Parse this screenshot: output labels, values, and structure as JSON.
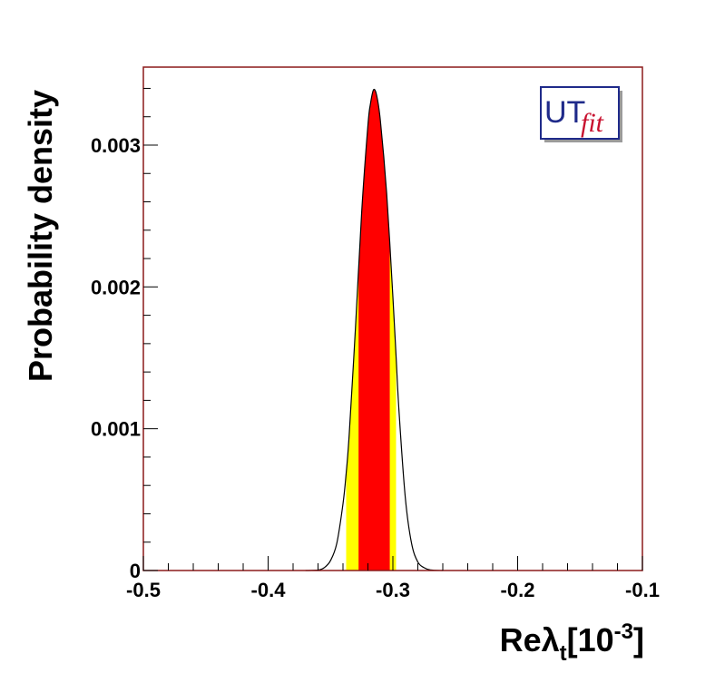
{
  "chart_data": {
    "type": "area",
    "xlabel": "Reλ",
    "xlabel_sub": "t",
    "xlabel_unit_open": "[10",
    "xlabel_unit_exp": "-3",
    "xlabel_unit_close": "]",
    "ylabel": "Probability density",
    "xlim": [
      -0.5,
      -0.1
    ],
    "ylim": [
      0,
      0.00355
    ],
    "x_ticks": [
      {
        "value": -0.5,
        "label": "-0.5"
      },
      {
        "value": -0.4,
        "label": "-0.4"
      },
      {
        "value": -0.3,
        "label": "-0.3"
      },
      {
        "value": -0.2,
        "label": "-0.2"
      },
      {
        "value": -0.1,
        "label": "-0.1"
      }
    ],
    "y_ticks": [
      {
        "value": 0,
        "label": "0"
      },
      {
        "value": 0.001,
        "label": "0.001"
      },
      {
        "value": 0.002,
        "label": "0.002"
      },
      {
        "value": 0.003,
        "label": "0.003"
      }
    ],
    "series": [
      {
        "x": [
          -0.37,
          -0.36,
          -0.355,
          -0.35,
          -0.345,
          -0.34,
          -0.3375,
          -0.335,
          -0.33,
          -0.325,
          -0.32,
          -0.318,
          -0.3155,
          -0.313,
          -0.31,
          -0.305,
          -0.3,
          -0.2975,
          -0.295,
          -0.29,
          -0.285,
          -0.28,
          -0.275,
          -0.27,
          -0.26
        ],
        "y": [
          0,
          3e-06,
          2e-05,
          7e-05,
          0.00019,
          0.00047,
          0.00068,
          0.00096,
          0.00171,
          0.00253,
          0.00314,
          0.00329,
          0.00339,
          0.00335,
          0.00317,
          0.00266,
          0.00193,
          0.00152,
          0.00111,
          0.00051,
          0.00019,
          6e-05,
          2e-05,
          4e-06,
          0
        ]
      }
    ],
    "bands": [
      {
        "level": "95%",
        "x_range": [
          -0.3375,
          -0.2975
        ],
        "color": "#ffff00"
      },
      {
        "level": "68%",
        "x_range": [
          -0.3275,
          -0.3025
        ],
        "color": "#ff0000"
      }
    ],
    "curve_color": "#000000",
    "frame_color": "#8b1a1a",
    "grid": false
  },
  "logo": {
    "text_main": "UT",
    "text_fit": "fit",
    "main_color": "#1f2a8a",
    "fit_color": "#c8102e",
    "background": "#ffffff"
  }
}
